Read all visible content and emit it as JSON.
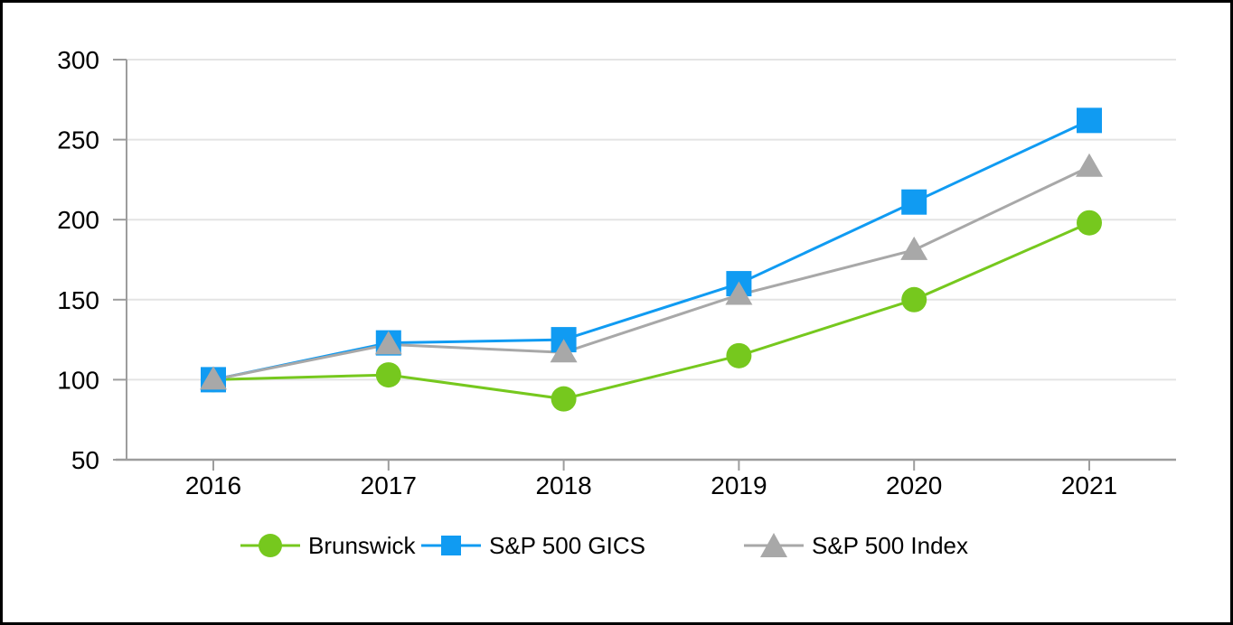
{
  "chart_data": {
    "type": "line",
    "title": "",
    "xlabel": "",
    "ylabel": "",
    "categories": [
      "2016",
      "2017",
      "2018",
      "2019",
      "2020",
      "2021"
    ],
    "series": [
      {
        "name": "Brunswick",
        "marker": "circle",
        "color": "#76C81E",
        "values": [
          100,
          103,
          88,
          115,
          150,
          198
        ]
      },
      {
        "name": "S&P 500 GICS",
        "marker": "square",
        "color": "#109BF2",
        "values": [
          100,
          123,
          125,
          160,
          211,
          262
        ]
      },
      {
        "name": "S&P 500 Index",
        "marker": "triangle",
        "color": "#A8A8A8",
        "values": [
          100,
          122,
          117,
          153,
          181,
          233
        ]
      }
    ],
    "y_ticks": [
      50,
      100,
      150,
      200,
      250,
      300
    ],
    "ylim": [
      50,
      300
    ],
    "grid": true,
    "legend_position": "bottom-center",
    "colors": {
      "axis": "#9D9D9D",
      "gridline": "#E4E4E4",
      "text": "#000000",
      "background": "#FFFFFF",
      "frame_border": "#000000"
    }
  }
}
